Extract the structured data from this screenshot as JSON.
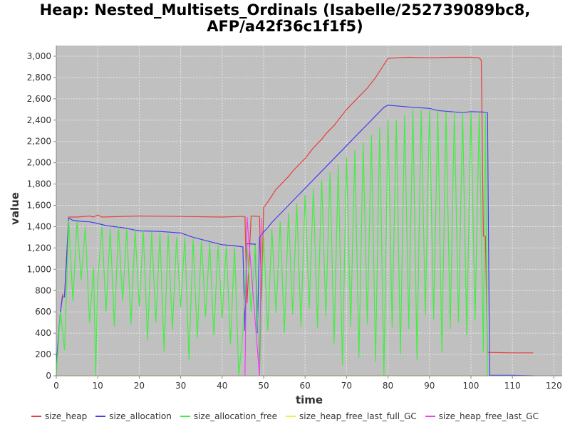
{
  "title_line1": "Heap: Nested_Multisets_Ordinals (Isabelle/252739089bc8,",
  "title_line2": "AFP/a42f36c1f1f5)",
  "chart_data": {
    "type": "line",
    "title": "Heap: Nested_Multisets_Ordinals (Isabelle/252739089bc8, AFP/a42f36c1f1f5)",
    "xlabel": "time",
    "ylabel": "value",
    "xlim": [
      0,
      122
    ],
    "ylim": [
      0,
      3100
    ],
    "xticks": [
      0,
      10,
      20,
      30,
      40,
      50,
      60,
      70,
      80,
      90,
      100,
      110,
      120
    ],
    "yticks": [
      0,
      200,
      400,
      600,
      800,
      1000,
      1200,
      1400,
      1600,
      1800,
      2000,
      2200,
      2400,
      2600,
      2800,
      3000
    ],
    "grid": true,
    "legend_position": "bottom",
    "colors": {
      "plot_background": "#c0c0c0",
      "grid": "#e8e8e8",
      "size_heap": "#e84040",
      "size_allocation": "#4040f0",
      "size_allocation_free": "#40f040",
      "size_heap_free_last_full_GC": "#f0f040",
      "size_heap_free_last_GC": "#f040f0"
    },
    "series": [
      {
        "name": "size_heap",
        "points": [
          [
            0,
            100
          ],
          [
            1,
            600
          ],
          [
            1.5,
            760
          ],
          [
            2,
            760
          ],
          [
            3,
            1490
          ],
          [
            5,
            1490
          ],
          [
            8,
            1500
          ],
          [
            9,
            1490
          ],
          [
            10,
            1510
          ],
          [
            11,
            1490
          ],
          [
            20,
            1500
          ],
          [
            30,
            1495
          ],
          [
            40,
            1490
          ],
          [
            44,
            1495
          ],
          [
            45.5,
            1495
          ],
          [
            46,
            680
          ],
          [
            47,
            1500
          ],
          [
            49,
            1495
          ],
          [
            49.5,
            700
          ],
          [
            50,
            1580
          ],
          [
            51,
            1630
          ],
          [
            52,
            1690
          ],
          [
            53,
            1750
          ],
          [
            54,
            1790
          ],
          [
            55,
            1830
          ],
          [
            56,
            1870
          ],
          [
            57,
            1920
          ],
          [
            58,
            1960
          ],
          [
            59,
            2000
          ],
          [
            60,
            2040
          ],
          [
            61,
            2090
          ],
          [
            62,
            2140
          ],
          [
            63,
            2180
          ],
          [
            64,
            2220
          ],
          [
            65,
            2270
          ],
          [
            66,
            2310
          ],
          [
            67,
            2350
          ],
          [
            68,
            2400
          ],
          [
            69,
            2450
          ],
          [
            70,
            2500
          ],
          [
            71,
            2540
          ],
          [
            72,
            2580
          ],
          [
            73,
            2620
          ],
          [
            74,
            2660
          ],
          [
            75,
            2700
          ],
          [
            76,
            2750
          ],
          [
            77,
            2800
          ],
          [
            78,
            2860
          ],
          [
            79,
            2920
          ],
          [
            80,
            2980
          ],
          [
            82,
            2985
          ],
          [
            85,
            2990
          ],
          [
            90,
            2985
          ],
          [
            95,
            2990
          ],
          [
            100,
            2990
          ],
          [
            102,
            2985
          ],
          [
            102.5,
            2960
          ],
          [
            103,
            1310
          ],
          [
            103.5,
            1310
          ],
          [
            104,
            220
          ],
          [
            110,
            215
          ],
          [
            115,
            215
          ]
        ]
      },
      {
        "name": "size_allocation",
        "points": [
          [
            0,
            100
          ],
          [
            1,
            600
          ],
          [
            1.5,
            740
          ],
          [
            2,
            740
          ],
          [
            3,
            1480
          ],
          [
            4,
            1460
          ],
          [
            6,
            1450
          ],
          [
            8,
            1445
          ],
          [
            10,
            1430
          ],
          [
            12,
            1410
          ],
          [
            14,
            1400
          ],
          [
            16,
            1390
          ],
          [
            18,
            1375
          ],
          [
            20,
            1360
          ],
          [
            25,
            1355
          ],
          [
            30,
            1340
          ],
          [
            33,
            1300
          ],
          [
            35,
            1280
          ],
          [
            37,
            1260
          ],
          [
            40,
            1230
          ],
          [
            43,
            1220
          ],
          [
            45,
            1210
          ],
          [
            45.5,
            420
          ],
          [
            46,
            1240
          ],
          [
            48,
            1235
          ],
          [
            48.5,
            400
          ],
          [
            49,
            1300
          ],
          [
            50,
            1350
          ],
          [
            51,
            1390
          ],
          [
            52,
            1440
          ],
          [
            53,
            1480
          ],
          [
            54,
            1520
          ],
          [
            55,
            1560
          ],
          [
            56,
            1600
          ],
          [
            57,
            1640
          ],
          [
            58,
            1680
          ],
          [
            59,
            1720
          ],
          [
            60,
            1760
          ],
          [
            61,
            1800
          ],
          [
            62,
            1840
          ],
          [
            63,
            1880
          ],
          [
            64,
            1920
          ],
          [
            65,
            1960
          ],
          [
            66,
            2000
          ],
          [
            67,
            2040
          ],
          [
            68,
            2080
          ],
          [
            69,
            2120
          ],
          [
            70,
            2160
          ],
          [
            71,
            2200
          ],
          [
            72,
            2240
          ],
          [
            73,
            2280
          ],
          [
            74,
            2320
          ],
          [
            75,
            2360
          ],
          [
            76,
            2400
          ],
          [
            77,
            2440
          ],
          [
            78,
            2480
          ],
          [
            79,
            2520
          ],
          [
            80,
            2540
          ],
          [
            83,
            2530
          ],
          [
            86,
            2520
          ],
          [
            90,
            2510
          ],
          [
            92,
            2490
          ],
          [
            95,
            2480
          ],
          [
            98,
            2470
          ],
          [
            100,
            2480
          ],
          [
            103,
            2475
          ],
          [
            103.5,
            2470
          ],
          [
            104,
            2470
          ],
          [
            104.5,
            5
          ],
          [
            110,
            5
          ],
          [
            115,
            0
          ]
        ]
      },
      {
        "name": "size_allocation_free",
        "points": [
          [
            0,
            0
          ],
          [
            1,
            600
          ],
          [
            2,
            240
          ],
          [
            3,
            1460
          ],
          [
            4,
            700
          ],
          [
            5,
            1450
          ],
          [
            6,
            900
          ],
          [
            7,
            1400
          ],
          [
            8,
            500
          ],
          [
            9,
            1010
          ],
          [
            9.5,
            0
          ],
          [
            10,
            900
          ],
          [
            11,
            1400
          ],
          [
            12,
            600
          ],
          [
            13,
            1380
          ],
          [
            14,
            460
          ],
          [
            15,
            1400
          ],
          [
            16,
            700
          ],
          [
            17,
            1380
          ],
          [
            18,
            480
          ],
          [
            19,
            1370
          ],
          [
            20,
            650
          ],
          [
            21,
            1360
          ],
          [
            22,
            330
          ],
          [
            23,
            1350
          ],
          [
            24,
            500
          ],
          [
            25,
            1340
          ],
          [
            26,
            230
          ],
          [
            27,
            1330
          ],
          [
            28,
            430
          ],
          [
            29,
            1300
          ],
          [
            30,
            640
          ],
          [
            31,
            1300
          ],
          [
            32,
            150
          ],
          [
            33,
            1280
          ],
          [
            34,
            350
          ],
          [
            35,
            1270
          ],
          [
            36,
            550
          ],
          [
            37,
            1250
          ],
          [
            38,
            380
          ],
          [
            39,
            1230
          ],
          [
            40,
            540
          ],
          [
            41,
            1220
          ],
          [
            42,
            300
          ],
          [
            43,
            1210
          ],
          [
            44,
            0
          ],
          [
            45,
            400
          ],
          [
            46,
            1230
          ],
          [
            47,
            600
          ],
          [
            48,
            1230
          ],
          [
            49,
            0
          ],
          [
            50,
            1300
          ],
          [
            51,
            420
          ],
          [
            52,
            1380
          ],
          [
            53,
            590
          ],
          [
            54,
            1450
          ],
          [
            55,
            400
          ],
          [
            56,
            1530
          ],
          [
            57,
            580
          ],
          [
            58,
            1620
          ],
          [
            59,
            460
          ],
          [
            60,
            1700
          ],
          [
            61,
            630
          ],
          [
            62,
            1760
          ],
          [
            63,
            450
          ],
          [
            64,
            1840
          ],
          [
            65,
            560
          ],
          [
            66,
            1910
          ],
          [
            67,
            300
          ],
          [
            68,
            1980
          ],
          [
            69,
            100
          ],
          [
            70,
            2050
          ],
          [
            71,
            460
          ],
          [
            72,
            2120
          ],
          [
            73,
            170
          ],
          [
            74,
            2190
          ],
          [
            75,
            480
          ],
          [
            76,
            2260
          ],
          [
            77,
            130
          ],
          [
            78,
            2330
          ],
          [
            79,
            0
          ],
          [
            80,
            2400
          ],
          [
            81,
            450
          ],
          [
            82,
            2400
          ],
          [
            83,
            200
          ],
          [
            84,
            2450
          ],
          [
            85,
            440
          ],
          [
            86,
            2500
          ],
          [
            87,
            150
          ],
          [
            88,
            2500
          ],
          [
            89,
            570
          ],
          [
            90,
            2500
          ],
          [
            91,
            530
          ],
          [
            92,
            2490
          ],
          [
            93,
            220
          ],
          [
            94,
            2480
          ],
          [
            95,
            440
          ],
          [
            96,
            2480
          ],
          [
            97,
            500
          ],
          [
            98,
            2470
          ],
          [
            99,
            380
          ],
          [
            100,
            2470
          ],
          [
            101,
            520
          ],
          [
            102,
            2470
          ],
          [
            103,
            220
          ],
          [
            103.5,
            2470
          ],
          [
            104,
            0
          ]
        ]
      },
      {
        "name": "size_heap_free_last_full_GC",
        "points": [
          [
            0,
            0
          ],
          [
            104,
            0
          ]
        ]
      },
      {
        "name": "size_heap_free_last_GC",
        "points": [
          [
            45.5,
            0
          ],
          [
            46,
            1490
          ],
          [
            49,
            0
          ],
          [
            49.5,
            1480
          ]
        ]
      }
    ]
  }
}
